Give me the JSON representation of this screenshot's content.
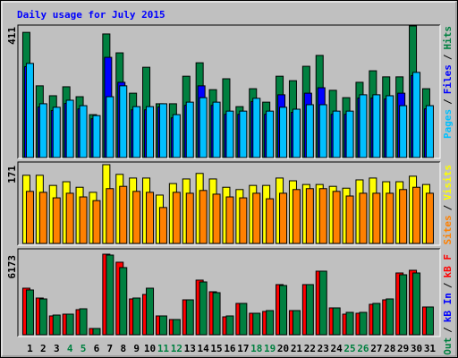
{
  "chart_data": [
    {
      "type": "bar",
      "title": "Daily usage for July 2015",
      "ylim": [
        0,
        411
      ],
      "yticks": [
        411
      ],
      "legend_separator": "/",
      "series": [
        {
          "name": "Hits",
          "color": "#008040",
          "values": [
            391,
            224,
            193,
            221,
            190,
            134,
            386,
            327,
            201,
            282,
            168,
            168,
            254,
            296,
            212,
            246,
            159,
            215,
            173,
            254,
            240,
            285,
            319,
            210,
            187,
            235,
            271,
            252,
            252,
            411,
            215
          ]
        },
        {
          "name": "Files",
          "color": "#0000ff",
          "values": [
            284,
            158,
            147,
            169,
            152,
            121,
            313,
            235,
            149,
            149,
            158,
            124,
            163,
            224,
            163,
            135,
            135,
            175,
            135,
            196,
            141,
            201,
            218,
            135,
            135,
            186,
            186,
            183,
            201,
            256,
            152
          ]
        },
        {
          "name": "Pages",
          "color": "#00c0ff",
          "values": [
            294,
            168,
            157,
            179,
            162,
            131,
            190,
            224,
            159,
            159,
            168,
            134,
            173,
            187,
            173,
            145,
            145,
            185,
            145,
            157,
            151,
            165,
            165,
            145,
            145,
            196,
            196,
            193,
            162,
            266,
            162
          ]
        }
      ]
    },
    {
      "type": "bar",
      "ylim": [
        0,
        171
      ],
      "yticks": [
        171
      ],
      "legend_separator": "/",
      "series": [
        {
          "name": "Visits",
          "color": "#ffff00",
          "values": [
            148,
            148,
            126,
            134,
            122,
            111,
            171,
            150,
            142,
            142,
            105,
            130,
            140,
            152,
            140,
            122,
            117,
            126,
            126,
            142,
            136,
            128,
            128,
            124,
            120,
            138,
            142,
            134,
            134,
            146,
            128
          ]
        },
        {
          "name": "Sites",
          "color": "#ff8000",
          "values": [
            113,
            111,
            99,
            109,
            101,
            93,
            119,
            124,
            113,
            111,
            78,
            111,
            109,
            115,
            107,
            101,
            99,
            109,
            97,
            109,
            117,
            119,
            119,
            113,
            103,
            109,
            109,
            109,
            117,
            122,
            109
          ]
        }
      ]
    },
    {
      "type": "bar",
      "ylim": [
        0,
        6173
      ],
      "yticks": [
        6173
      ],
      "legend_separator": "/",
      "categories": [
        "1",
        "2",
        "3",
        "4",
        "5",
        "6",
        "7",
        "8",
        "9",
        "10",
        "11",
        "12",
        "13",
        "14",
        "15",
        "16",
        "17",
        "18",
        "19",
        "20",
        "21",
        "22",
        "23",
        "24",
        "25",
        "26",
        "27",
        "28",
        "29",
        "30",
        "31"
      ],
      "category_colors": [
        "#000000",
        "#000000",
        "#000000",
        "#008040",
        "#008040",
        "#000000",
        "#000000",
        "#000000",
        "#000000",
        "#000000",
        "#008040",
        "#008040",
        "#000000",
        "#000000",
        "#000000",
        "#000000",
        "#000000",
        "#008040",
        "#008040",
        "#000000",
        "#000000",
        "#000000",
        "#000000",
        "#000000",
        "#008040",
        "#008040",
        "#000000",
        "#000000",
        "#000000",
        "#000000",
        "#000000"
      ],
      "series": [
        {
          "name": "kB F",
          "color": "#ff0000",
          "values": [
            3567,
            2813,
            1441,
            1578,
            1921,
            480,
            6173,
            5557,
            2744,
            3087,
            1441,
            1166,
            2675,
            4185,
            3293,
            1372,
            2401,
            1646,
            1784,
            3842,
            1852,
            3842,
            4871,
            2058,
            1578,
            1646,
            2332,
            2675,
            4733,
            4939,
            2127
          ]
        },
        {
          "name": "kB In",
          "color": "#0000ff",
          "values": [
            null,
            null,
            null,
            null,
            null,
            null,
            null,
            null,
            null,
            null,
            null,
            null,
            null,
            null,
            null,
            null,
            null,
            null,
            null,
            null,
            null,
            null,
            null,
            null,
            null,
            null,
            null,
            null,
            null,
            null,
            null
          ]
        },
        {
          "name": "kB Out",
          "color": "#008040",
          "values": [
            3430,
            2744,
            1509,
            1578,
            1989,
            480,
            6105,
            5145,
            2813,
            3567,
            1441,
            1166,
            2675,
            4047,
            3224,
            1441,
            2401,
            1646,
            1852,
            3773,
            1852,
            3842,
            4871,
            2058,
            1715,
            1715,
            2401,
            2744,
            4596,
            4733,
            2127
          ]
        }
      ]
    }
  ]
}
